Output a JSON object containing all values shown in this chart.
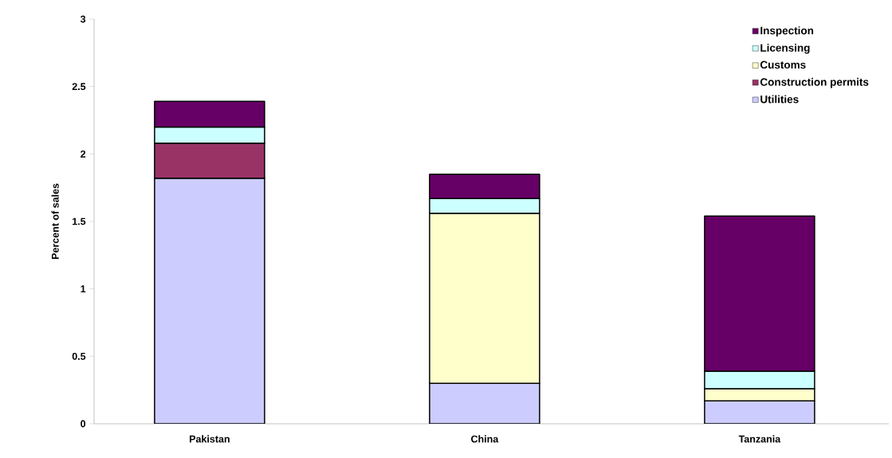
{
  "chart_data": {
    "type": "bar",
    "stacked": true,
    "ylabel": "Percent of sales",
    "categories": [
      "Pakistan",
      "China",
      "Tanzania"
    ],
    "series": [
      {
        "name": "Utilities",
        "color": "#ccccff",
        "values": [
          1.82,
          0.3,
          0.17
        ]
      },
      {
        "name": "Construction permits",
        "color": "#993366",
        "values": [
          0.26,
          null,
          null
        ]
      },
      {
        "name": "Customs",
        "color": "#ffffcc",
        "values": [
          null,
          1.26,
          0.09
        ]
      },
      {
        "name": "Licensing",
        "color": "#ccffff",
        "values": [
          0.12,
          0.11,
          0.13
        ]
      },
      {
        "name": "Inspection",
        "color": "#660066",
        "values": [
          0.19,
          0.18,
          1.15
        ]
      }
    ],
    "ylim": [
      0,
      3
    ],
    "yticks": [
      0,
      0.5,
      1,
      1.5,
      2,
      2.5,
      3
    ],
    "grid": false,
    "legend": "top right"
  }
}
